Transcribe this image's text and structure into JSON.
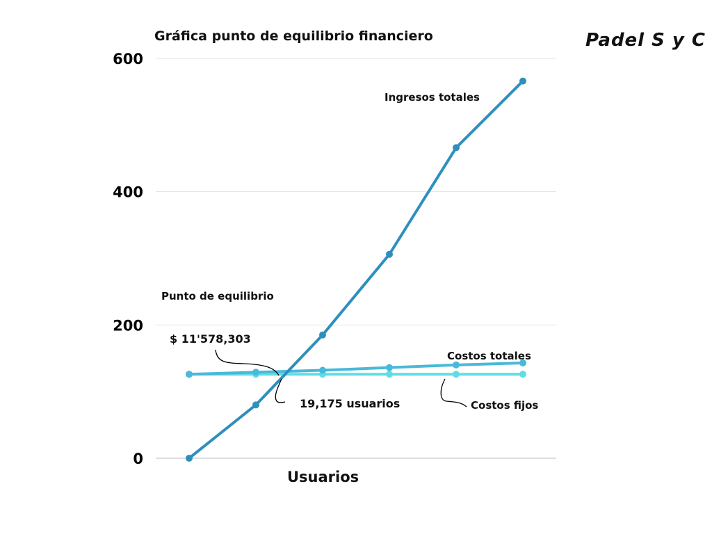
{
  "brand": "Padel S y C",
  "chart_data": {
    "type": "line",
    "title": "Gráfica punto de equilibrio financiero",
    "xlabel": "Usuarios",
    "ylabel": "",
    "ylim": [
      0,
      600
    ],
    "yticks": [
      0,
      200,
      400,
      600
    ],
    "grid": true,
    "x": [
      0,
      1,
      2,
      3,
      4,
      5
    ],
    "series": [
      {
        "name": "Ingresos totales",
        "color": "#2e8fbd",
        "values": [
          0,
          80,
          185,
          306,
          466,
          566
        ]
      },
      {
        "name": "Costos totales",
        "color": "#49b9d9",
        "values": [
          126,
          129,
          132,
          136,
          140,
          143
        ]
      },
      {
        "name": "Costos fijos",
        "color": "#5fdde6",
        "values": [
          126,
          126,
          126,
          126,
          126,
          126
        ]
      }
    ],
    "annotations": {
      "breakeven_label": "Punto de equilibrio",
      "breakeven_value": "$ 11'578,303",
      "breakeven_users": "19,175 usuarios"
    }
  }
}
